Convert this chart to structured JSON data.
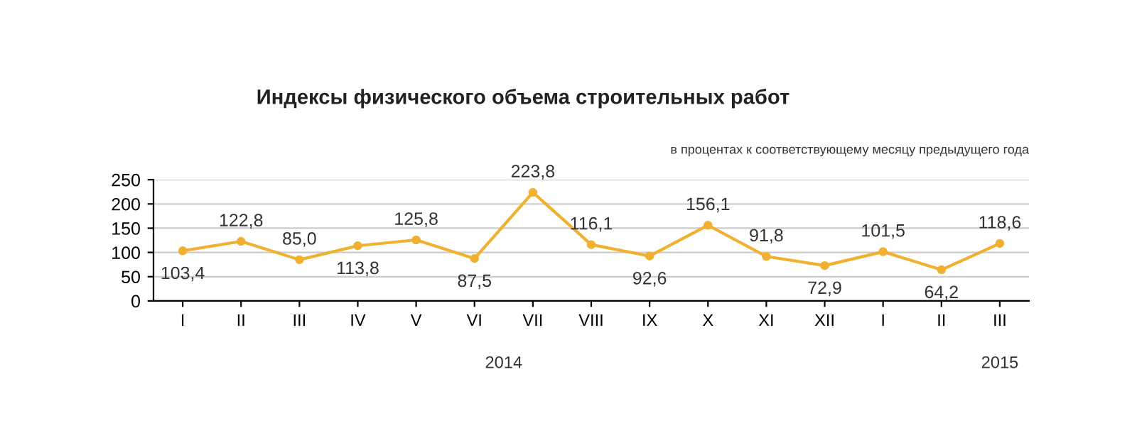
{
  "chart_data": {
    "type": "line",
    "title": "Индексы физического объема строительных работ",
    "subtitle": "в процентах к соответствующему месяцу предыдущего года",
    "categories": [
      "I",
      "II",
      "III",
      "IV",
      "V",
      "VI",
      "VII",
      "VIII",
      "IX",
      "X",
      "XI",
      "XII",
      "I",
      "II",
      "III"
    ],
    "series": [
      {
        "color": "#f0b030",
        "values": [
          103.4,
          122.8,
          85.0,
          113.8,
          125.8,
          87.5,
          223.8,
          116.1,
          92.6,
          156.1,
          91.8,
          72.9,
          101.5,
          64.2,
          118.6
        ],
        "value_labels": [
          "103,4",
          "122,8",
          "85,0",
          "113,8",
          "125,8",
          "87,5",
          "223,8",
          "116,1",
          "92,6",
          "156,1",
          "91,8",
          "72,9",
          "101,5",
          "64,2",
          "118,6"
        ]
      }
    ],
    "ylim": [
      0,
      250
    ],
    "yticks": [
      0,
      50,
      100,
      150,
      200,
      250
    ],
    "grid": "y",
    "marker": "circle",
    "line_style": "solid",
    "annotations": [
      "2014",
      "2015"
    ]
  }
}
